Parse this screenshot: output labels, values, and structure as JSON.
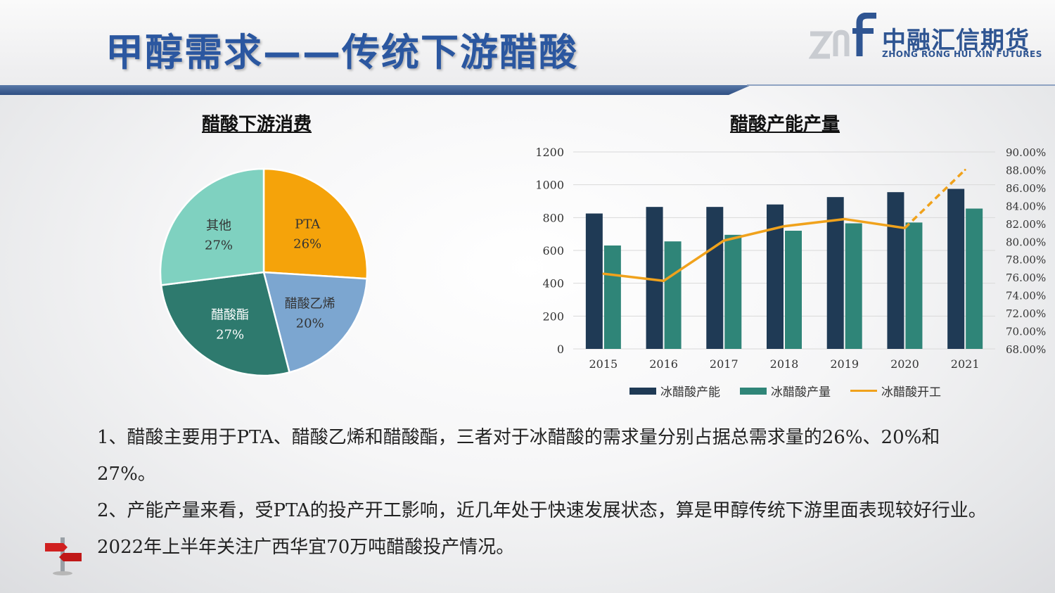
{
  "header": {
    "title": "甲醇需求——传统下游醋酸",
    "logo_cn": "中融汇信期货",
    "logo_en": "ZHONG RONG HUI XIN FUTURES"
  },
  "colors": {
    "pta": "#f5a30a",
    "vinyl_acetate": "#7ca6d0",
    "ester": "#2e7a6e",
    "other": "#7fd1c0",
    "capacity": "#1f3a55",
    "output": "#2f8578",
    "utilization": "#f0a21c",
    "accent": "#2f5592"
  },
  "icons": [
    "logo-mark-icon",
    "signpost-icon"
  ],
  "chart_data": [
    {
      "type": "pie",
      "title": "醋酸下游消费",
      "slices": [
        {
          "label": "PTA",
          "value": 26,
          "value_label": "26%"
        },
        {
          "label": "醋酸乙烯",
          "value": 20,
          "value_label": "20%"
        },
        {
          "label": "醋酸酯",
          "value": 27,
          "value_label": "27%"
        },
        {
          "label": "其他",
          "value": 27,
          "value_label": "27%"
        }
      ]
    },
    {
      "type": "bar",
      "title": "醋酸产能产量",
      "categories": [
        "2015",
        "2016",
        "2017",
        "2018",
        "2019",
        "2020",
        "2021"
      ],
      "ylim": [
        0,
        1200
      ],
      "yticks": [
        "0",
        "200",
        "400",
        "600",
        "800",
        "1000",
        "1200"
      ],
      "y2lim": [
        68,
        90
      ],
      "y2ticks": [
        "68.00%",
        "70.00%",
        "72.00%",
        "74.00%",
        "76.00%",
        "78.00%",
        "80.00%",
        "82.00%",
        "84.00%",
        "86.00%",
        "88.00%",
        "90.00%"
      ],
      "series": [
        {
          "name": "冰醋酸产能",
          "kind": "bar",
          "values": [
            825,
            865,
            865,
            880,
            925,
            955,
            975
          ]
        },
        {
          "name": "冰醋酸产量",
          "kind": "bar",
          "values": [
            630,
            655,
            695,
            720,
            765,
            770,
            855
          ]
        },
        {
          "name": "冰醋酸开工",
          "kind": "line",
          "axis": "secondary",
          "values": [
            76.4,
            75.6,
            80.1,
            81.7,
            82.5,
            81.5,
            88.0
          ],
          "dashed_from_index": 5
        }
      ],
      "legend_position": "bottom",
      "grid": "horizontal"
    }
  ],
  "text": {
    "para1": "1、醋酸主要用于PTA、醋酸乙烯和醋酸酯，三者对于冰醋酸的需求量分别占据总需求量的26%、20%和27%。",
    "para2": "2、产能产量来看，受PTA的投产开工影响，近几年处于快速发展状态，算是甲醇传统下游里面表现较好行业。2022年上半年关注广西华宜70万吨醋酸投产情况。"
  }
}
